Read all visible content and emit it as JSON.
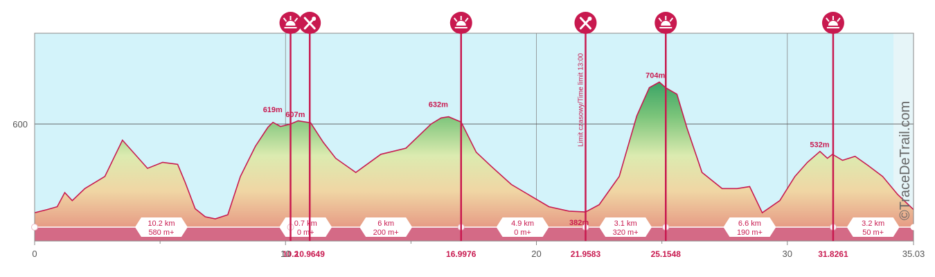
{
  "watermark": "©TraceDeTrail.com",
  "chart_data": {
    "type": "area",
    "title": "",
    "xlabel": "",
    "ylabel": "",
    "xlim": [
      0,
      35.03
    ],
    "ylim": [
      310,
      825
    ],
    "x_ticks": [
      {
        "value": 0,
        "label": "0"
      },
      {
        "value": 10,
        "label": "10"
      },
      {
        "value": 20,
        "label": "20"
      },
      {
        "value": 30,
        "label": "30"
      },
      {
        "value": 35.03,
        "label": "35.03"
      }
    ],
    "y_ticks": [
      {
        "value": 600,
        "label": "600"
      }
    ],
    "grid": true,
    "colors": {
      "line": "#c8194f",
      "sky": "#d3f3fa",
      "band": "#d46a86",
      "grid": "#888888",
      "accent": "#c8194f"
    },
    "series": [
      {
        "x": [
          0,
          0.5,
          0.9,
          1.2,
          1.5,
          2.0,
          2.8,
          3.5,
          4.5,
          5.1,
          5.7,
          6.0,
          6.4,
          6.8,
          7.2,
          7.7,
          8.2,
          8.8,
          9.3,
          9.5,
          9.8,
          10.2,
          10.5,
          11.0,
          11.5,
          12.0,
          12.8,
          13.8,
          14.8,
          15.8,
          16.2,
          16.5,
          17.0,
          17.6,
          18.2,
          19.0,
          20.5,
          21.3,
          21.96,
          22.5,
          23.3,
          24.0,
          24.5,
          24.9,
          25.15,
          25.6,
          26.0,
          26.6,
          27.4,
          28.0,
          28.5,
          29.0,
          29.7,
          30.3,
          30.8,
          31.3,
          31.6,
          31.8,
          32.2,
          32.7,
          33.2,
          33.8,
          34.4,
          35.03
        ],
        "y": [
          380,
          388,
          395,
          430,
          410,
          440,
          470,
          560,
          490,
          505,
          500,
          455,
          390,
          370,
          365,
          375,
          470,
          545,
          592,
          604,
          594,
          600,
          608,
          603,
          555,
          515,
          480,
          525,
          540,
          600,
          615,
          618,
          605,
          530,
          495,
          450,
          395,
          384,
          382,
          400,
          470,
          620,
          690,
          704,
          690,
          674,
          590,
          480,
          440,
          440,
          445,
          380,
          410,
          470,
          505,
          532,
          515,
          525,
          510,
          520,
          498,
          470,
          425,
          388
        ],
        "fill": "gradient"
      }
    ],
    "waypoints": [
      {
        "km": 10.2,
        "icon": "aid-station-icon",
        "label": "10.2"
      },
      {
        "km": 10.9649,
        "icon": "fork-knife-icon",
        "label": "10.9649"
      },
      {
        "km": 16.9976,
        "icon": "aid-station-icon",
        "label": "16.9976"
      },
      {
        "km": 21.9583,
        "icon": "fork-knife-icon",
        "label": "21.9583",
        "annotation": "Limit czasowy/Time limit 13:00"
      },
      {
        "km": 25.1548,
        "icon": "aid-station-icon",
        "label": "25.1548"
      },
      {
        "km": 31.8261,
        "icon": "aid-station-icon",
        "label": "31.8261"
      }
    ],
    "peak_labels": [
      {
        "km": 9.6,
        "elev": 619,
        "label": "619m"
      },
      {
        "km": 10.5,
        "elev": 607,
        "label": "607m"
      },
      {
        "km": 16.2,
        "elev": 632,
        "label": "632m"
      },
      {
        "km": 24.85,
        "elev": 704,
        "label": "704m"
      },
      {
        "km": 31.4,
        "elev": 532,
        "label": "532m"
      },
      {
        "km": 21.7,
        "elev": 382,
        "label": "382m"
      }
    ],
    "segments": [
      {
        "km": 5.05,
        "distance": "10.2 km",
        "climb": "580 m+"
      },
      {
        "km": 10.8,
        "distance": "0.7 km",
        "climb": "0 m+"
      },
      {
        "km": 14.0,
        "distance": "6 km",
        "climb": "200 m+"
      },
      {
        "km": 19.45,
        "distance": "4.9 km",
        "climb": "0 m+"
      },
      {
        "km": 23.55,
        "distance": "3.1 km",
        "climb": "320 m+"
      },
      {
        "km": 28.5,
        "distance": "6.6 km",
        "climb": "190 m+"
      },
      {
        "km": 33.42,
        "distance": "3.2 km",
        "climb": "50 m+"
      }
    ],
    "track_points": [
      0,
      10.2,
      16.9976,
      21.9583,
      25.1548,
      31.8261
    ]
  }
}
